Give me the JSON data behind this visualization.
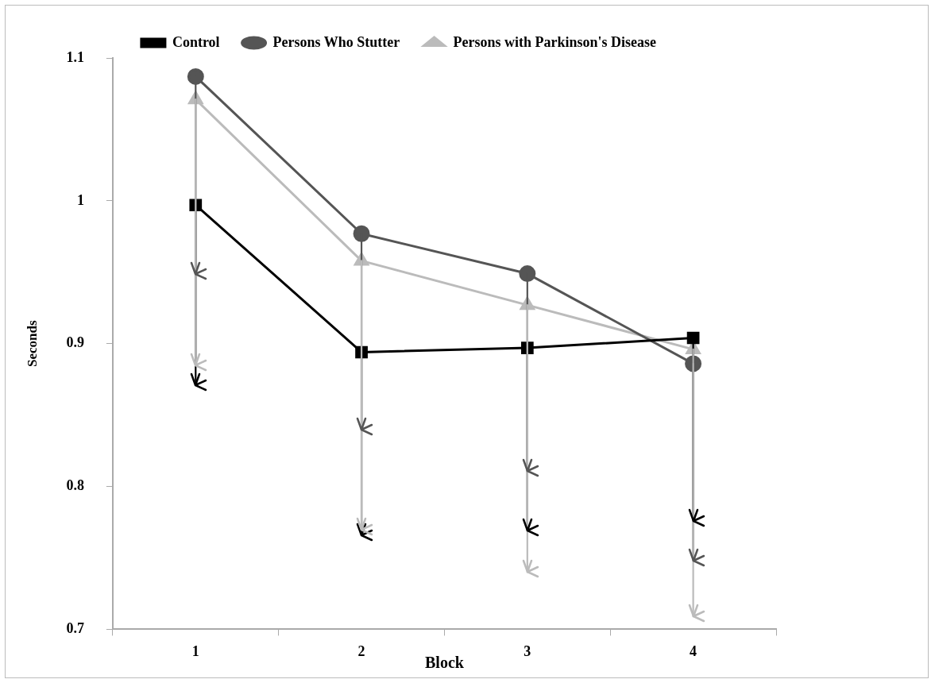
{
  "chart_data": {
    "type": "line",
    "xlabel": "Block",
    "ylabel": "Seconds",
    "categories": [
      "1",
      "2",
      "3",
      "4"
    ],
    "ylim": [
      0.7,
      1.1
    ],
    "yticks": [
      0.7,
      0.8,
      0.9,
      1,
      1.1
    ],
    "grid": false,
    "legend": "top",
    "series": [
      {
        "name": "Control",
        "color": "#000000",
        "marker": "square",
        "values": [
          0.997,
          0.894,
          0.897,
          0.904
        ],
        "errors": [
          [
            0.871,
            0.997
          ],
          [
            0.766,
            0.894
          ],
          [
            0.769,
            0.897
          ],
          [
            0.776,
            0.904
          ]
        ]
      },
      {
        "name": "Persons Who Stutter",
        "color": "#555555",
        "marker": "circle",
        "values": [
          1.087,
          0.977,
          0.949,
          0.886
        ],
        "errors": [
          [
            0.949,
            1.087
          ],
          [
            0.84,
            0.977
          ],
          [
            0.811,
            0.949
          ],
          [
            0.748,
            0.886
          ]
        ]
      },
      {
        "name": "Persons with Parkinson's Disease",
        "color": "#bbbbbb",
        "marker": "triangle",
        "values": [
          1.071,
          0.958,
          0.927,
          0.896
        ],
        "errors": [
          [
            0.885,
            1.071
          ],
          [
            0.77,
            0.958
          ],
          [
            0.74,
            0.927
          ],
          [
            0.709,
            0.896
          ]
        ]
      }
    ]
  }
}
